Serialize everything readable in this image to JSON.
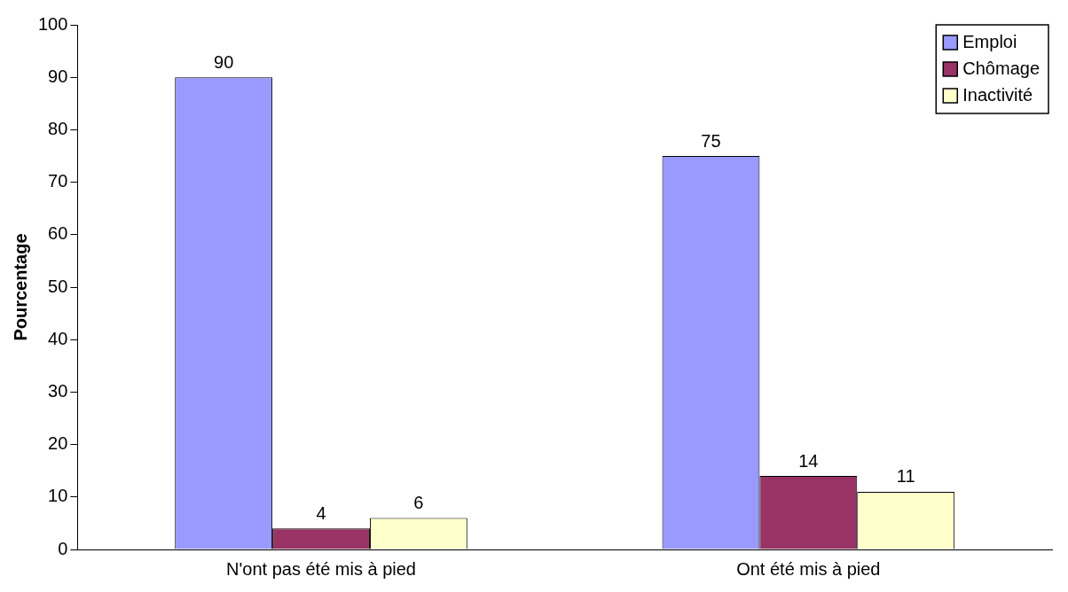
{
  "chart_data": {
    "type": "bar",
    "ylabel": "Pourcentage",
    "categories": [
      "N'ont pas été mis à pied",
      "Ont été mis à pied"
    ],
    "series": [
      {
        "name": "Emploi",
        "color": "#9999ff",
        "values": [
          90,
          75
        ]
      },
      {
        "name": "Chômage",
        "color": "#993366",
        "values": [
          4,
          14
        ]
      },
      {
        "name": "Inactivité",
        "color": "#ffffcc",
        "values": [
          6,
          11
        ]
      }
    ],
    "ylim": [
      0,
      100
    ],
    "yticks": [
      0,
      10,
      20,
      30,
      40,
      50,
      60,
      70,
      80,
      90,
      100
    ],
    "grid": false,
    "legend": "top right",
    "data_labels": true
  }
}
